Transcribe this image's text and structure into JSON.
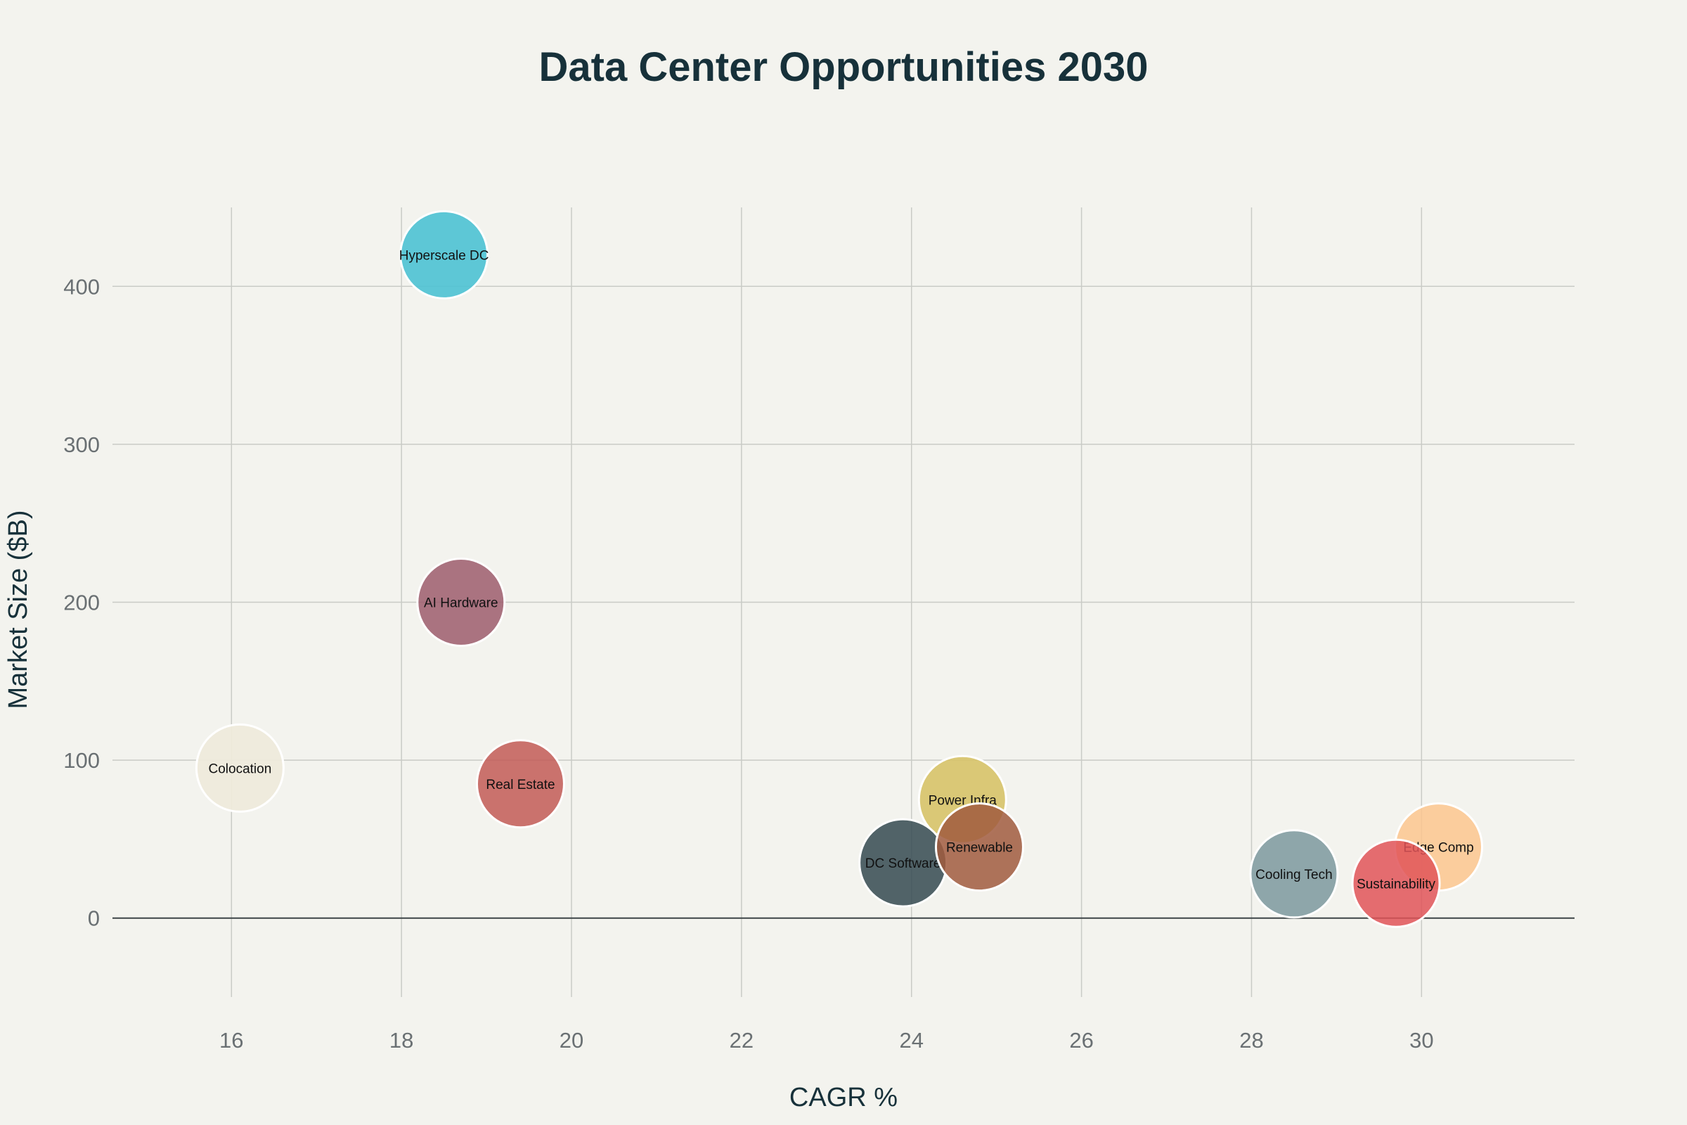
{
  "chart_data": {
    "type": "scatter",
    "subtype": "bubble",
    "title": "Data Center Opportunities 2030",
    "xlabel": "CAGR %",
    "ylabel": "Market Size ($B)",
    "xlim": [
      14.6,
      31.8
    ],
    "ylim": [
      -50,
      450
    ],
    "x_ticks": [
      16,
      18,
      20,
      22,
      24,
      26,
      28,
      30
    ],
    "y_ticks": [
      0,
      100,
      200,
      300,
      400
    ],
    "grid": true,
    "legend": "none",
    "points": [
      {
        "label": "Hyperscale DC",
        "x": 18.5,
        "y": 420,
        "color": "#4cc2d3",
        "opacity": 0.9
      },
      {
        "label": "AI Hardware",
        "x": 18.7,
        "y": 200,
        "color": "#9c5c6c",
        "opacity": 0.85
      },
      {
        "label": "Colocation",
        "x": 16.1,
        "y": 95,
        "color": "#eeeadb",
        "opacity": 0.95
      },
      {
        "label": "Real Estate",
        "x": 19.4,
        "y": 85,
        "color": "#c25a56",
        "opacity": 0.85
      },
      {
        "label": "Power Infra",
        "x": 24.6,
        "y": 75,
        "color": "#d7c368",
        "opacity": 0.9
      },
      {
        "label": "DC Software",
        "x": 23.9,
        "y": 35,
        "color": "#3a4f55",
        "opacity": 0.88
      },
      {
        "label": "Renewable",
        "x": 24.8,
        "y": 45,
        "color": "#a05a3e",
        "opacity": 0.85
      },
      {
        "label": "Cooling Tech",
        "x": 28.5,
        "y": 28,
        "color": "#7f9ba0",
        "opacity": 0.88
      },
      {
        "label": "Edge Comp",
        "x": 30.2,
        "y": 45,
        "color": "#fcc58e",
        "opacity": 0.85
      },
      {
        "label": "Sustainability",
        "x": 29.7,
        "y": 22,
        "color": "#e05458",
        "opacity": 0.85
      }
    ]
  }
}
